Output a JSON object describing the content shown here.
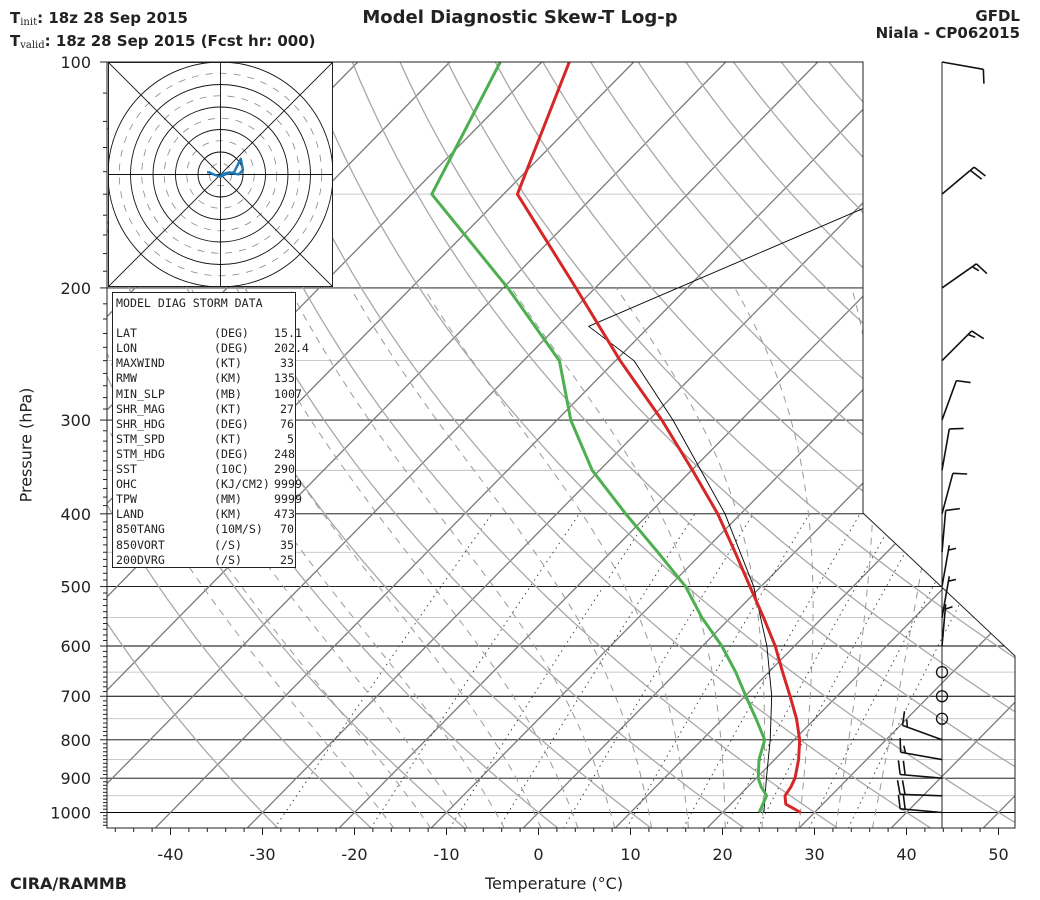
{
  "header": {
    "init_label": "T",
    "init_sub": "init",
    "init_value": ":  18z 28 Sep 2015",
    "valid_label": "T",
    "valid_sub": "valid",
    "valid_value": ": 18z 28 Sep 2015 (Fcst hr: 000)",
    "title": "Model Diagnostic Skew-T Log-p",
    "model": "GFDL",
    "storm": "Niala - CP062015"
  },
  "footer": {
    "credit": "CIRA/RAMMB"
  },
  "infobox": {
    "title": "MODEL DIAG STORM DATA",
    "rows": [
      {
        "key": "LAT",
        "unit": "(DEG)",
        "value": "15.1"
      },
      {
        "key": "LON",
        "unit": "(DEG)",
        "value": "202.4"
      },
      {
        "key": "MAXWIND",
        "unit": "(KT)",
        "value": "33"
      },
      {
        "key": "RMW",
        "unit": "(KM)",
        "value": "135"
      },
      {
        "key": "MIN_SLP",
        "unit": "(MB)",
        "value": "1007"
      },
      {
        "key": "SHR_MAG",
        "unit": "(KT)",
        "value": "27"
      },
      {
        "key": "SHR_HDG",
        "unit": "(DEG)",
        "value": "76"
      },
      {
        "key": "STM_SPD",
        "unit": "(KT)",
        "value": "5"
      },
      {
        "key": "STM_HDG",
        "unit": "(DEG)",
        "value": "248"
      },
      {
        "key": "SST",
        "unit": "(10C)",
        "value": "290"
      },
      {
        "key": "OHC",
        "unit": "(KJ/CM2)",
        "value": "9999"
      },
      {
        "key": "TPW",
        "unit": "(MM)",
        "value": "9999"
      },
      {
        "key": "LAND",
        "unit": "(KM)",
        "value": "473"
      },
      {
        "key": "850TANG",
        "unit": "(10M/S)",
        "value": "70"
      },
      {
        "key": "850VORT",
        "unit": "(/S)",
        "value": "35"
      },
      {
        "key": "200DVRG",
        "unit": "(/S)",
        "value": "25"
      }
    ]
  },
  "chart_data": {
    "type": "skew-t",
    "title": "Model Diagnostic Skew-T Log-p",
    "xlabel": "Temperature (°C)",
    "ylabel": "Pressure (hPa)",
    "xticks": [
      -40,
      -30,
      -20,
      -10,
      0,
      10,
      20,
      30,
      40,
      50
    ],
    "yticks": [
      100,
      200,
      300,
      400,
      500,
      600,
      700,
      800,
      900,
      1000
    ],
    "xlim": [
      -47,
      52
    ],
    "ylim": [
      1050,
      100
    ],
    "colors": {
      "temperature": "#d62728",
      "dewpoint": "#4caf50",
      "hodograph": "#1f77b4",
      "parcel": "#000000"
    },
    "temperature": [
      {
        "p": 1000,
        "t": 28.5
      },
      {
        "p": 975,
        "t": 26
      },
      {
        "p": 950,
        "t": 25
      },
      {
        "p": 925,
        "t": 24.7
      },
      {
        "p": 900,
        "t": 24.2
      },
      {
        "p": 850,
        "t": 22.6
      },
      {
        "p": 800,
        "t": 20.6
      },
      {
        "p": 750,
        "t": 18.0
      },
      {
        "p": 700,
        "t": 14.9
      },
      {
        "p": 650,
        "t": 11.5
      },
      {
        "p": 600,
        "t": 7.9
      },
      {
        "p": 550,
        "t": 3.6
      },
      {
        "p": 500,
        "t": -1.2
      },
      {
        "p": 450,
        "t": -6.5
      },
      {
        "p": 400,
        "t": -12.5
      },
      {
        "p": 350,
        "t": -19.9
      },
      {
        "p": 300,
        "t": -28.6
      },
      {
        "p": 250,
        "t": -39.5
      },
      {
        "p": 200,
        "t": -52.1
      },
      {
        "p": 150,
        "t": -68.5
      },
      {
        "p": 100,
        "t": -77
      }
    ],
    "dewpoint": [
      {
        "p": 1000,
        "t": 24
      },
      {
        "p": 975,
        "t": 23.5
      },
      {
        "p": 950,
        "t": 23
      },
      {
        "p": 925,
        "t": 21.5
      },
      {
        "p": 900,
        "t": 20.2
      },
      {
        "p": 850,
        "t": 18.3
      },
      {
        "p": 800,
        "t": 16.8
      },
      {
        "p": 750,
        "t": 13.6
      },
      {
        "p": 700,
        "t": 10.1
      },
      {
        "p": 650,
        "t": 6.4
      },
      {
        "p": 600,
        "t": 2.1
      },
      {
        "p": 550,
        "t": -3.1
      },
      {
        "p": 500,
        "t": -8.2
      },
      {
        "p": 450,
        "t": -14.9
      },
      {
        "p": 400,
        "t": -22.5
      },
      {
        "p": 350,
        "t": -30.8
      },
      {
        "p": 300,
        "t": -38.5
      },
      {
        "p": 250,
        "t": -46.1
      },
      {
        "p": 200,
        "t": -59.5
      },
      {
        "p": 150,
        "t": -77.8
      },
      {
        "p": 100,
        "t": -84.5
      }
    ],
    "parcel": [
      {
        "p": 1000,
        "t": 24.5
      },
      {
        "p": 900,
        "t": 21.1
      },
      {
        "p": 800,
        "t": 17.4
      },
      {
        "p": 700,
        "t": 12.9
      },
      {
        "p": 600,
        "t": 7.0
      },
      {
        "p": 500,
        "t": -0.8
      },
      {
        "p": 400,
        "t": -11.7
      },
      {
        "p": 300,
        "t": -27.4
      },
      {
        "p": 250,
        "t": -38.0
      },
      {
        "p": 225,
        "t": -46.6
      },
      {
        "p": 100,
        "t": -8
      }
    ],
    "wind_barbs": [
      {
        "p": 1000,
        "dir": 95,
        "spd": 20
      },
      {
        "p": 950,
        "dir": 92,
        "spd": 20
      },
      {
        "p": 900,
        "dir": 95,
        "spd": 20
      },
      {
        "p": 850,
        "dir": 100,
        "spd": 15
      },
      {
        "p": 800,
        "dir": 110,
        "spd": 15
      },
      {
        "p": 750,
        "dir": 0,
        "spd": 0
      },
      {
        "p": 700,
        "dir": 0,
        "spd": 0
      },
      {
        "p": 650,
        "dir": 0,
        "spd": 0
      },
      {
        "p": 600,
        "dir": 185,
        "spd": 5
      },
      {
        "p": 550,
        "dir": 190,
        "spd": 5
      },
      {
        "p": 500,
        "dir": 190,
        "spd": 5
      },
      {
        "p": 450,
        "dir": 185,
        "spd": 10
      },
      {
        "p": 400,
        "dir": 195,
        "spd": 10
      },
      {
        "p": 350,
        "dir": 190,
        "spd": 10
      },
      {
        "p": 300,
        "dir": 200,
        "spd": 10
      },
      {
        "p": 250,
        "dir": 225,
        "spd": 15
      },
      {
        "p": 200,
        "dir": 235,
        "spd": 15
      },
      {
        "p": 150,
        "dir": 230,
        "spd": 20
      },
      {
        "p": 100,
        "dir": 280,
        "spd": 10
      }
    ],
    "hodograph": [
      {
        "u": 0,
        "v": 0
      },
      {
        "u": 4,
        "v": 1
      },
      {
        "u": 8,
        "v": 0
      },
      {
        "u": 10,
        "v": 2
      },
      {
        "u": 9,
        "v": 7
      },
      {
        "u": 6,
        "v": 1
      },
      {
        "u": 2,
        "v": 0
      },
      {
        "u": 0,
        "v": -1
      },
      {
        "u": -3,
        "v": 0
      },
      {
        "u": -5,
        "v": 1
      },
      {
        "u": -6,
        "v": 1
      }
    ]
  }
}
